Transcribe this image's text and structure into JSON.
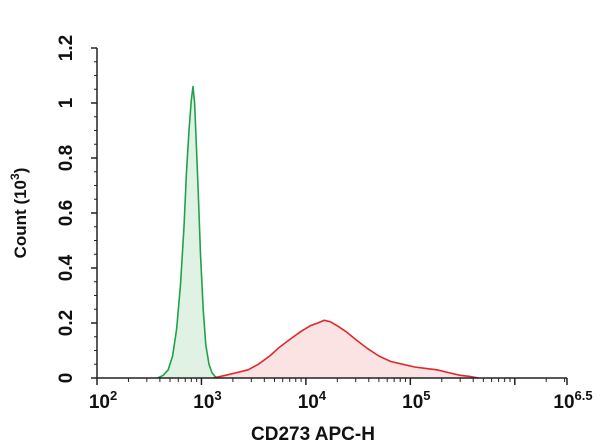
{
  "chart_data": {
    "type": "area",
    "title": "",
    "xlabel": "CD273 APC-H",
    "ylabel": {
      "text": "Count (10",
      "exp": "3",
      "close": ")"
    },
    "x_scale": "log10",
    "xlim": [
      100,
      3162278
    ],
    "ylim": [
      0,
      1.2
    ],
    "x_ticks": [
      {
        "value": 100,
        "base": "10",
        "exp": "2"
      },
      {
        "value": 1000,
        "base": "10",
        "exp": "3"
      },
      {
        "value": 10000,
        "base": "10",
        "exp": "4"
      },
      {
        "value": 100000,
        "base": "10",
        "exp": "5"
      },
      {
        "value": 3162278,
        "base": "10",
        "exp": "6.5"
      }
    ],
    "y_ticks": [
      "0",
      "0.2",
      "0.4",
      "0.6",
      "0.8",
      "1",
      "1.2"
    ],
    "y_tick_values": [
      0,
      0.2,
      0.4,
      0.6,
      0.8,
      1.0,
      1.2
    ],
    "grid": false,
    "legend": "none",
    "series": [
      {
        "color": "#1fa34a",
        "fill": "#dff2e3",
        "points": [
          [
            380,
            0.0
          ],
          [
            430,
            0.01
          ],
          [
            480,
            0.03
          ],
          [
            530,
            0.08
          ],
          [
            580,
            0.18
          ],
          [
            630,
            0.34
          ],
          [
            680,
            0.55
          ],
          [
            720,
            0.75
          ],
          [
            760,
            0.9
          ],
          [
            800,
            1.01
          ],
          [
            830,
            1.06
          ],
          [
            860,
            1.0
          ],
          [
            890,
            0.86
          ],
          [
            930,
            0.68
          ],
          [
            980,
            0.45
          ],
          [
            1040,
            0.25
          ],
          [
            1100,
            0.12
          ],
          [
            1180,
            0.05
          ],
          [
            1260,
            0.02
          ],
          [
            1350,
            0.005
          ],
          [
            1450,
            0.0
          ]
        ]
      },
      {
        "color": "#e0282a",
        "fill": "#fbe3e4",
        "points": [
          [
            1300,
            0.0
          ],
          [
            1700,
            0.01
          ],
          [
            2200,
            0.02
          ],
          [
            2800,
            0.03
          ],
          [
            3500,
            0.05
          ],
          [
            4500,
            0.08
          ],
          [
            5500,
            0.11
          ],
          [
            7000,
            0.14
          ],
          [
            9000,
            0.17
          ],
          [
            11000,
            0.19
          ],
          [
            13000,
            0.2
          ],
          [
            15000,
            0.21
          ],
          [
            17000,
            0.205
          ],
          [
            20000,
            0.19
          ],
          [
            24000,
            0.17
          ],
          [
            30000,
            0.14
          ],
          [
            38000,
            0.11
          ],
          [
            50000,
            0.08
          ],
          [
            65000,
            0.06
          ],
          [
            85000,
            0.05
          ],
          [
            110000,
            0.04
          ],
          [
            140000,
            0.035
          ],
          [
            180000,
            0.03
          ],
          [
            230000,
            0.02
          ],
          [
            300000,
            0.01
          ],
          [
            380000,
            0.005
          ],
          [
            450000,
            0.0
          ]
        ]
      }
    ]
  }
}
